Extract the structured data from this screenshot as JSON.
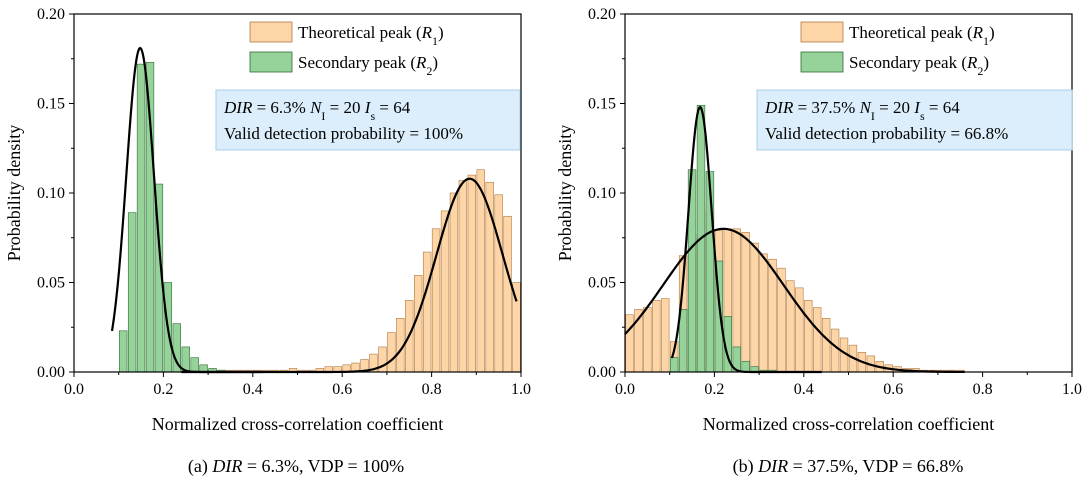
{
  "colors": {
    "theoretical_fill": "#fdd5a6",
    "theoretical_stroke": "#b07a45",
    "secondary_fill": "#96d39a",
    "secondary_stroke": "#2e6b34",
    "fit_line": "#000000",
    "info_box": "#dceefb",
    "info_box_border": "#a8cfe8"
  },
  "chart_data": [
    {
      "type": "bar",
      "panel": "a",
      "caption": {
        "prefix": "(a) ",
        "dir_label": "DIR",
        "rest": " = 6.3%, VDP = 100%"
      },
      "xlabel": "Normalized cross-correlation coefficient",
      "ylabel": "Probability density",
      "xlim": [
        0,
        1
      ],
      "ylim": [
        0,
        0.2
      ],
      "xticks": [
        "0.0",
        "0.2",
        "0.4",
        "0.6",
        "0.8",
        "1.0"
      ],
      "yticks": [
        "0.00",
        "0.05",
        "0.10",
        "0.15",
        "0.20"
      ],
      "grid": false,
      "legend_position": "top-right",
      "legend": [
        {
          "text": "Theoretical peak (",
          "sym": "R",
          "sub": "1",
          "close": ")"
        },
        {
          "text": "Secondary peak (",
          "sym": "R",
          "sub": "2",
          "close": ")"
        }
      ],
      "info": {
        "line1": [
          {
            "t": "DIR",
            "i": true
          },
          {
            "t": " = 6.3%  "
          },
          {
            "t": "N",
            "i": true
          },
          {
            "t": "I",
            "sub": true
          },
          {
            "t": " = 20  "
          },
          {
            "t": "I",
            "i": true
          },
          {
            "t": "s",
            "sub": true
          },
          {
            "t": " = 64"
          }
        ],
        "line2": "Valid detection probability = 100%"
      },
      "bin_width": 0.02,
      "series": [
        {
          "name": "Theoretical peak (R1)",
          "fill_key": "theoretical_fill",
          "x": [
            0.23,
            0.25,
            0.27,
            0.29,
            0.31,
            0.33,
            0.35,
            0.37,
            0.39,
            0.41,
            0.43,
            0.45,
            0.47,
            0.49,
            0.51,
            0.53,
            0.55,
            0.57,
            0.59,
            0.61,
            0.63,
            0.65,
            0.67,
            0.69,
            0.71,
            0.73,
            0.75,
            0.77,
            0.79,
            0.81,
            0.83,
            0.85,
            0.87,
            0.89,
            0.91,
            0.93,
            0.95,
            0.97,
            0.99
          ],
          "values": [
            0.001,
            0.001,
            0.001,
            0.001,
            0.001,
            0.001,
            0.001,
            0.001,
            0.001,
            0.001,
            0.001,
            0.001,
            0.001,
            0.002,
            0.001,
            0.001,
            0.002,
            0.003,
            0.003,
            0.004,
            0.005,
            0.007,
            0.01,
            0.014,
            0.022,
            0.03,
            0.04,
            0.054,
            0.067,
            0.08,
            0.09,
            0.1,
            0.107,
            0.11,
            0.113,
            0.106,
            0.099,
            0.087,
            0.05
          ]
        },
        {
          "name": "Secondary peak (R2)",
          "fill_key": "secondary_fill",
          "x": [
            0.11,
            0.13,
            0.15,
            0.17,
            0.19,
            0.21,
            0.23,
            0.25,
            0.27,
            0.29,
            0.31,
            0.33
          ],
          "values": [
            0.023,
            0.089,
            0.172,
            0.173,
            0.105,
            0.05,
            0.027,
            0.014,
            0.008,
            0.004,
            0.002,
            0.001
          ]
        }
      ],
      "fits": [
        {
          "series": "Theoretical peak (R1)",
          "mean": 0.885,
          "sd": 0.074,
          "amp": 0.108,
          "xmin": 0.24,
          "xmax": 0.99
        },
        {
          "series": "Secondary peak (R2)",
          "mean": 0.148,
          "sd": 0.031,
          "amp": 0.181,
          "xmin": 0.085,
          "xmax": 0.42
        }
      ]
    },
    {
      "type": "bar",
      "panel": "b",
      "caption": {
        "prefix": "(b) ",
        "dir_label": "DIR",
        "rest": " = 37.5%, VDP = 66.8%"
      },
      "xlabel": "Normalized cross-correlation coefficient",
      "ylabel": "Probability density",
      "xlim": [
        0,
        1
      ],
      "ylim": [
        0,
        0.2
      ],
      "xticks": [
        "0.0",
        "0.2",
        "0.4",
        "0.6",
        "0.8",
        "1.0"
      ],
      "yticks": [
        "0.00",
        "0.05",
        "0.10",
        "0.15",
        "0.20"
      ],
      "grid": false,
      "legend_position": "top-right",
      "legend": [
        {
          "text": "Theoretical peak (",
          "sym": "R",
          "sub": "1",
          "close": ")"
        },
        {
          "text": "Secondary peak (",
          "sym": "R",
          "sub": "2",
          "close": ")"
        }
      ],
      "info": {
        "line1": [
          {
            "t": "DIR",
            "i": true
          },
          {
            "t": " = 37.5%  "
          },
          {
            "t": "N",
            "i": true
          },
          {
            "t": "I",
            "sub": true
          },
          {
            "t": " = 20  "
          },
          {
            "t": "I",
            "i": true
          },
          {
            "t": "s",
            "sub": true
          },
          {
            "t": " = 64"
          }
        ],
        "line2": "Valid detection probability = 66.8%"
      },
      "bin_width": 0.02,
      "series": [
        {
          "name": "Theoretical peak (R1)",
          "fill_key": "theoretical_fill",
          "x": [
            0.01,
            0.03,
            0.05,
            0.07,
            0.09,
            0.11,
            0.13,
            0.15,
            0.17,
            0.19,
            0.21,
            0.23,
            0.25,
            0.27,
            0.29,
            0.31,
            0.33,
            0.35,
            0.37,
            0.39,
            0.41,
            0.43,
            0.45,
            0.47,
            0.49,
            0.51,
            0.53,
            0.55,
            0.57,
            0.59,
            0.61,
            0.63,
            0.65,
            0.67,
            0.69,
            0.71,
            0.73,
            0.75
          ],
          "values": [
            0.032,
            0.035,
            0.036,
            0.04,
            0.041,
            0.017,
            0.065,
            0.075,
            0.077,
            0.09,
            0.079,
            0.08,
            0.08,
            0.078,
            0.072,
            0.066,
            0.063,
            0.058,
            0.051,
            0.047,
            0.04,
            0.036,
            0.03,
            0.024,
            0.019,
            0.015,
            0.011,
            0.009,
            0.006,
            0.004,
            0.003,
            0.002,
            0.002,
            0.001,
            0.001,
            0.001,
            0.001,
            0.001
          ]
        },
        {
          "name": "Secondary peak (R2)",
          "fill_key": "secondary_fill",
          "x": [
            0.11,
            0.13,
            0.15,
            0.17,
            0.19,
            0.21,
            0.23,
            0.25,
            0.27,
            0.29,
            0.31,
            0.33
          ],
          "values": [
            0.008,
            0.035,
            0.113,
            0.149,
            0.112,
            0.062,
            0.031,
            0.014,
            0.006,
            0.003,
            0.001,
            0.001
          ]
        }
      ],
      "fits": [
        {
          "series": "Theoretical peak (R1)",
          "mean": 0.22,
          "sd": 0.135,
          "amp": 0.08,
          "xmin": 0.0,
          "xmax": 0.76
        },
        {
          "series": "Secondary peak (R2)",
          "mean": 0.168,
          "sd": 0.026,
          "amp": 0.148,
          "xmin": 0.105,
          "xmax": 0.44
        }
      ]
    }
  ]
}
